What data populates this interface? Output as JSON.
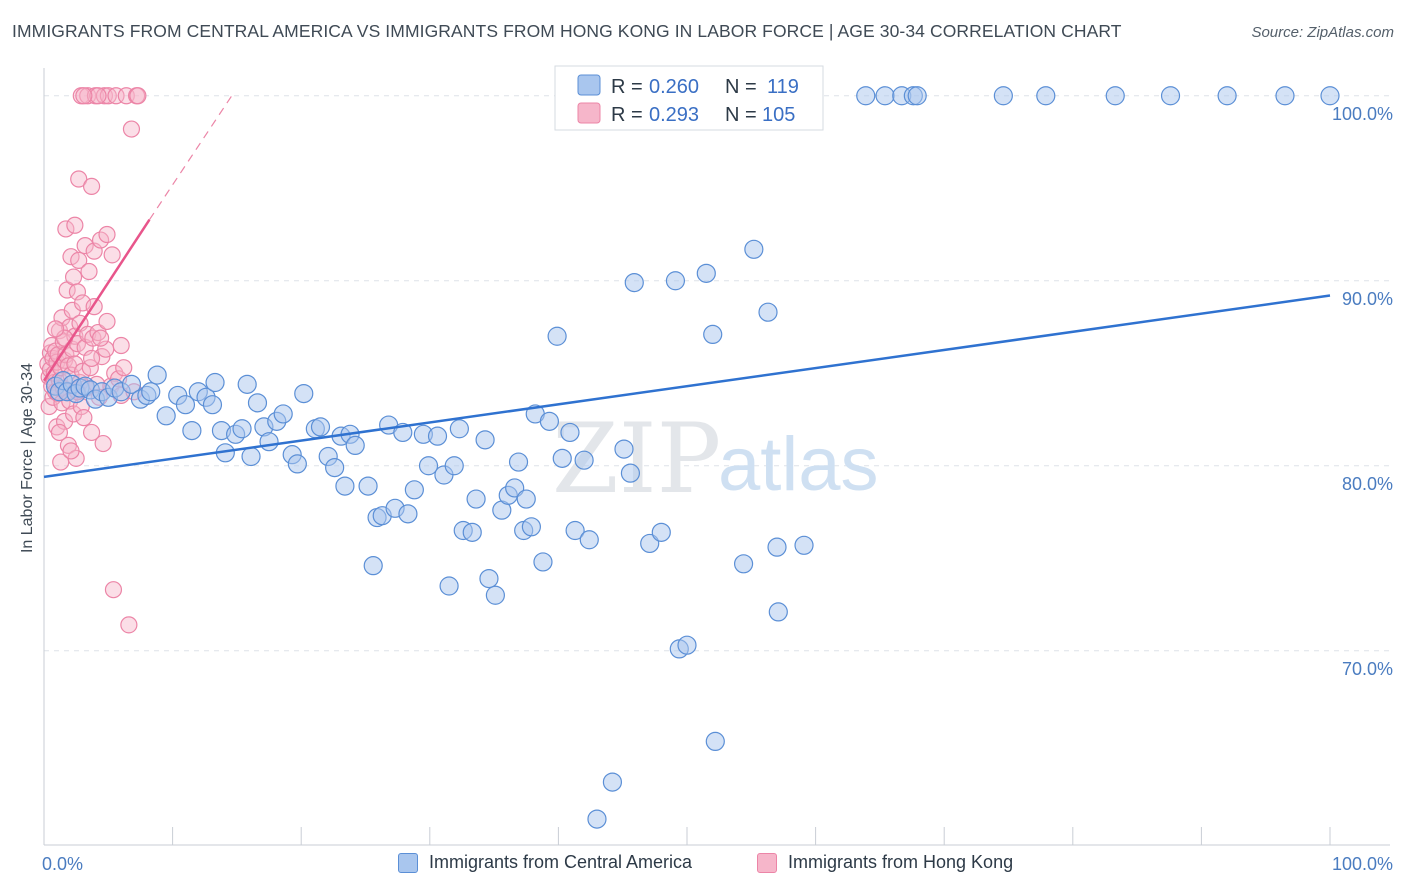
{
  "title": "IMMIGRANTS FROM CENTRAL AMERICA VS IMMIGRANTS FROM HONG KONG IN LABOR FORCE | AGE 30-34 CORRELATION CHART",
  "source": "Source: ZipAtlas.com",
  "watermark": {
    "zip": "ZIP",
    "atlas": "atlas"
  },
  "colors": {
    "blue_fill": "#a9c6ee",
    "blue_stroke": "#5b8fd6",
    "blue_line": "#2f72d0",
    "pink_fill": "#f6b6ca",
    "pink_stroke": "#ec85a7",
    "pink_line": "#e8558b",
    "tick_text": "#4a7cc0",
    "grid": "#dde2e8"
  },
  "legend_box": {
    "rows": [
      {
        "r_label": "R =",
        "r_value": "0.260",
        "n_label": "N =",
        "n_value": "119",
        "color": "blue"
      },
      {
        "r_label": "R =",
        "r_value": "0.293",
        "n_label": "N =",
        "n_value": "105",
        "color": "pink"
      }
    ]
  },
  "bottom_legend": [
    {
      "label": "Immigrants from Central America",
      "color": "blue"
    },
    {
      "label": "Immigrants from Hong Kong",
      "color": "pink"
    }
  ],
  "chart_data": {
    "type": "scatter",
    "title": "IMMIGRANTS FROM CENTRAL AMERICA VS IMMIGRANTS FROM HONG KONG IN LABOR FORCE | AGE 30-34 CORRELATION CHART",
    "xlabel": "",
    "ylabel": "In Labor Force | Age 30-34",
    "xlim": [
      0,
      100
    ],
    "ylim": [
      59.5,
      101.5
    ],
    "x_tick_labels": [
      {
        "value": 0,
        "label": "0.0%"
      },
      {
        "value": 100,
        "label": "100.0%"
      }
    ],
    "y_tick_labels": [
      {
        "value": 100,
        "label": "100.0%"
      },
      {
        "value": 90,
        "label": "90.0%"
      },
      {
        "value": 80,
        "label": "80.0%"
      },
      {
        "value": 70,
        "label": "70.0%"
      }
    ],
    "grid": true,
    "legend_position": "top-center",
    "series": [
      {
        "name": "Immigrants from Central America",
        "color": "blue",
        "trend": {
          "x": [
            0,
            100
          ],
          "y": [
            79.4,
            89.2
          ]
        },
        "points": [
          [
            0.9,
            84.3
          ],
          [
            1.2,
            84.0
          ],
          [
            1.5,
            84.6
          ],
          [
            1.8,
            84.0
          ],
          [
            2.2,
            84.4
          ],
          [
            2.5,
            83.9
          ],
          [
            2.8,
            84.2
          ],
          [
            3.2,
            84.3
          ],
          [
            3.6,
            84.1
          ],
          [
            4.0,
            83.6
          ],
          [
            4.5,
            84.0
          ],
          [
            5.0,
            83.7
          ],
          [
            5.5,
            84.2
          ],
          [
            6.0,
            84.0
          ],
          [
            6.8,
            84.4
          ],
          [
            7.5,
            83.6
          ],
          [
            8.0,
            83.8
          ],
          [
            8.3,
            84.0
          ],
          [
            8.8,
            84.9
          ],
          [
            9.5,
            82.7
          ],
          [
            10.4,
            83.8
          ],
          [
            11.0,
            83.3
          ],
          [
            11.5,
            81.9
          ],
          [
            12.0,
            84.0
          ],
          [
            12.6,
            83.7
          ],
          [
            13.1,
            83.3
          ],
          [
            13.3,
            84.5
          ],
          [
            13.8,
            81.9
          ],
          [
            14.1,
            80.7
          ],
          [
            14.9,
            81.7
          ],
          [
            15.4,
            82.0
          ],
          [
            15.8,
            84.4
          ],
          [
            16.1,
            80.5
          ],
          [
            16.6,
            83.4
          ],
          [
            17.1,
            82.1
          ],
          [
            17.5,
            81.3
          ],
          [
            18.1,
            82.4
          ],
          [
            18.6,
            82.8
          ],
          [
            19.3,
            80.6
          ],
          [
            19.7,
            80.1
          ],
          [
            20.2,
            83.9
          ],
          [
            21.1,
            82.0
          ],
          [
            21.5,
            82.1
          ],
          [
            22.1,
            80.5
          ],
          [
            22.6,
            79.9
          ],
          [
            23.1,
            81.6
          ],
          [
            23.4,
            78.9
          ],
          [
            23.8,
            81.7
          ],
          [
            24.2,
            81.1
          ],
          [
            25.2,
            78.9
          ],
          [
            25.6,
            74.6
          ],
          [
            25.9,
            77.2
          ],
          [
            26.3,
            77.3
          ],
          [
            26.8,
            82.2
          ],
          [
            27.3,
            77.7
          ],
          [
            27.9,
            81.8
          ],
          [
            28.3,
            77.4
          ],
          [
            28.8,
            78.7
          ],
          [
            29.5,
            81.7
          ],
          [
            29.9,
            80.0
          ],
          [
            30.6,
            81.6
          ],
          [
            31.1,
            79.5
          ],
          [
            31.5,
            73.5
          ],
          [
            31.9,
            80.0
          ],
          [
            32.3,
            82.0
          ],
          [
            32.6,
            76.5
          ],
          [
            33.3,
            76.4
          ],
          [
            33.6,
            78.2
          ],
          [
            34.3,
            81.4
          ],
          [
            34.6,
            73.9
          ],
          [
            35.1,
            73.0
          ],
          [
            35.6,
            77.6
          ],
          [
            36.1,
            78.4
          ],
          [
            36.6,
            78.8
          ],
          [
            36.9,
            80.2
          ],
          [
            37.3,
            76.5
          ],
          [
            37.5,
            78.2
          ],
          [
            37.9,
            76.7
          ],
          [
            38.2,
            82.8
          ],
          [
            38.8,
            74.8
          ],
          [
            39.3,
            82.4
          ],
          [
            39.9,
            87.0
          ],
          [
            40.3,
            80.4
          ],
          [
            40.9,
            81.8
          ],
          [
            41.3,
            76.5
          ],
          [
            42.0,
            80.3
          ],
          [
            42.4,
            76.0
          ],
          [
            43.0,
            60.9
          ],
          [
            44.2,
            62.9
          ],
          [
            45.1,
            80.9
          ],
          [
            45.6,
            79.6
          ],
          [
            45.9,
            89.9
          ],
          [
            47.1,
            75.8
          ],
          [
            48.0,
            76.4
          ],
          [
            49.1,
            90.0
          ],
          [
            49.4,
            70.1
          ],
          [
            50.0,
            70.3
          ],
          [
            51.5,
            90.4
          ],
          [
            52.0,
            87.1
          ],
          [
            52.2,
            65.1
          ],
          [
            54.4,
            74.7
          ],
          [
            55.2,
            91.7
          ],
          [
            56.3,
            88.3
          ],
          [
            57.0,
            75.6
          ],
          [
            57.1,
            72.1
          ],
          [
            59.1,
            75.7
          ],
          [
            63.9,
            100.0
          ],
          [
            65.4,
            100.0
          ],
          [
            66.7,
            100.0
          ],
          [
            67.6,
            100.0
          ],
          [
            67.9,
            100.0
          ],
          [
            74.6,
            100.0
          ],
          [
            77.9,
            100.0
          ],
          [
            83.3,
            100.0
          ],
          [
            87.6,
            100.0
          ],
          [
            92.0,
            100.0
          ],
          [
            96.5,
            100.0
          ],
          [
            100.0,
            100.0
          ],
          [
            58.0,
            100.0
          ]
        ]
      },
      {
        "name": "Immigrants from Hong Kong",
        "color": "pink",
        "trend": {
          "x": [
            0,
            8.2
          ],
          "y": [
            84.6,
            93.3
          ],
          "extended_x": [
            8.2,
            14.6
          ],
          "extended_y": [
            93.3,
            100.0
          ]
        },
        "points": [
          [
            0.3,
            85.5
          ],
          [
            0.4,
            84.8
          ],
          [
            0.4,
            83.2
          ],
          [
            0.5,
            86.1
          ],
          [
            0.5,
            85.2
          ],
          [
            0.6,
            84.3
          ],
          [
            0.6,
            86.5
          ],
          [
            0.7,
            85.8
          ],
          [
            0.7,
            83.7
          ],
          [
            0.8,
            84.5
          ],
          [
            0.8,
            85.0
          ],
          [
            0.9,
            86.2
          ],
          [
            0.9,
            84.0
          ],
          [
            1.0,
            82.1
          ],
          [
            1.0,
            85.6
          ],
          [
            1.1,
            86.0
          ],
          [
            1.1,
            83.9
          ],
          [
            1.2,
            84.6
          ],
          [
            1.2,
            87.3
          ],
          [
            1.3,
            85.3
          ],
          [
            1.3,
            80.2
          ],
          [
            1.4,
            83.4
          ],
          [
            1.4,
            88.0
          ],
          [
            1.5,
            86.7
          ],
          [
            1.5,
            84.2
          ],
          [
            1.6,
            85.7
          ],
          [
            1.6,
            82.4
          ],
          [
            1.7,
            92.8
          ],
          [
            1.7,
            86.0
          ],
          [
            1.8,
            84.0
          ],
          [
            1.8,
            89.5
          ],
          [
            1.9,
            81.1
          ],
          [
            1.9,
            85.4
          ],
          [
            2.0,
            87.5
          ],
          [
            2.0,
            83.5
          ],
          [
            2.1,
            91.3
          ],
          [
            2.1,
            84.9
          ],
          [
            2.2,
            88.4
          ],
          [
            2.2,
            86.3
          ],
          [
            2.3,
            90.2
          ],
          [
            2.3,
            82.8
          ],
          [
            2.4,
            85.5
          ],
          [
            2.4,
            87.0
          ],
          [
            2.5,
            84.1
          ],
          [
            2.5,
            80.4
          ],
          [
            2.6,
            89.4
          ],
          [
            2.6,
            86.6
          ],
          [
            2.7,
            95.5
          ],
          [
            2.7,
            91.1
          ],
          [
            2.8,
            84.5
          ],
          [
            2.8,
            87.7
          ],
          [
            2.9,
            83.2
          ],
          [
            2.9,
            100.0
          ],
          [
            3.0,
            85.1
          ],
          [
            3.0,
            88.8
          ],
          [
            3.1,
            82.6
          ],
          [
            3.2,
            86.4
          ],
          [
            3.2,
            91.9
          ],
          [
            3.3,
            84.2
          ],
          [
            3.4,
            100.0
          ],
          [
            3.4,
            87.1
          ],
          [
            3.5,
            90.5
          ],
          [
            3.6,
            85.3
          ],
          [
            3.7,
            95.1
          ],
          [
            3.7,
            81.8
          ],
          [
            3.8,
            86.9
          ],
          [
            3.9,
            88.6
          ],
          [
            3.9,
            91.6
          ],
          [
            4.0,
            100.0
          ],
          [
            4.1,
            84.4
          ],
          [
            4.2,
            87.2
          ],
          [
            4.3,
            83.7
          ],
          [
            4.4,
            92.2
          ],
          [
            4.5,
            85.9
          ],
          [
            4.6,
            81.2
          ],
          [
            4.7,
            100.0
          ],
          [
            4.8,
            86.3
          ],
          [
            4.9,
            87.8
          ],
          [
            4.9,
            92.5
          ],
          [
            5.0,
            100.0
          ],
          [
            5.2,
            84.3
          ],
          [
            5.3,
            91.4
          ],
          [
            5.5,
            85.0
          ],
          [
            5.6,
            100.0
          ],
          [
            5.8,
            84.7
          ],
          [
            6.0,
            83.8
          ],
          [
            6.2,
            85.3
          ],
          [
            6.4,
            100.0
          ],
          [
            6.6,
            71.4
          ],
          [
            6.8,
            98.2
          ],
          [
            7.0,
            84.0
          ],
          [
            7.2,
            100.0
          ],
          [
            5.4,
            73.3
          ],
          [
            2.1,
            80.8
          ],
          [
            1.6,
            86.9
          ],
          [
            0.9,
            87.4
          ],
          [
            4.2,
            100.0
          ],
          [
            3.1,
            100.0
          ],
          [
            2.4,
            93.0
          ],
          [
            3.7,
            85.8
          ],
          [
            6.0,
            86.5
          ],
          [
            7.3,
            100.0
          ],
          [
            1.2,
            81.8
          ],
          [
            2.6,
            84.0
          ],
          [
            4.4,
            86.9
          ]
        ]
      }
    ]
  }
}
